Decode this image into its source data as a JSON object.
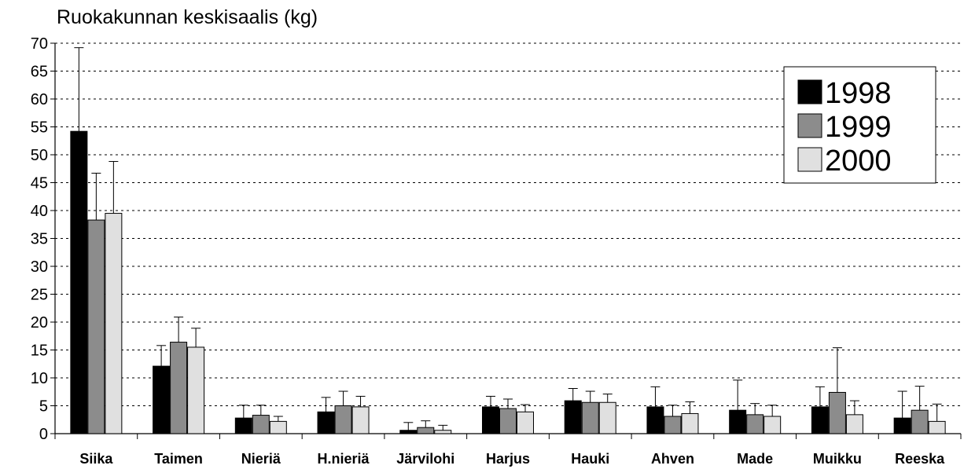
{
  "chart_data": {
    "type": "bar",
    "title": "Ruokakunnan keskisaalis (kg)",
    "xlabel": "",
    "ylabel": "",
    "ylim": [
      0,
      70
    ],
    "yticks": [
      0,
      5,
      10,
      15,
      20,
      25,
      30,
      35,
      40,
      45,
      50,
      55,
      60,
      65,
      70
    ],
    "grid": true,
    "legend_position": "top-right",
    "categories": [
      "Siika",
      "Taimen",
      "Nieriä",
      "H.nieriä",
      "Järvilohi",
      "Harjus",
      "Hauki",
      "Ahven",
      "Made",
      "Muikku",
      "Reeska"
    ],
    "series": [
      {
        "name": "1998",
        "color": "#000000",
        "values": [
          54.2,
          12.1,
          2.8,
          3.9,
          0.6,
          4.8,
          5.9,
          4.8,
          4.2,
          4.8,
          2.8
        ],
        "error": [
          15.0,
          3.7,
          2.3,
          2.6,
          1.4,
          1.9,
          2.2,
          3.6,
          5.4,
          3.6,
          4.8
        ]
      },
      {
        "name": "1999",
        "color": "#8c8c8c",
        "values": [
          38.3,
          16.4,
          3.3,
          5.0,
          1.1,
          4.5,
          5.6,
          3.1,
          3.4,
          7.4,
          4.2
        ],
        "error": [
          8.4,
          4.5,
          1.8,
          2.6,
          1.2,
          1.7,
          2.0,
          2.0,
          2.0,
          8.0,
          4.3
        ]
      },
      {
        "name": "2000",
        "color": "#e0e0e0",
        "values": [
          39.5,
          15.5,
          2.2,
          4.8,
          0.6,
          3.9,
          5.6,
          3.6,
          3.1,
          3.4,
          2.2
        ],
        "error": [
          9.3,
          3.4,
          0.9,
          1.9,
          0.9,
          1.3,
          1.5,
          2.1,
          2.0,
          2.5,
          3.1
        ]
      }
    ]
  }
}
